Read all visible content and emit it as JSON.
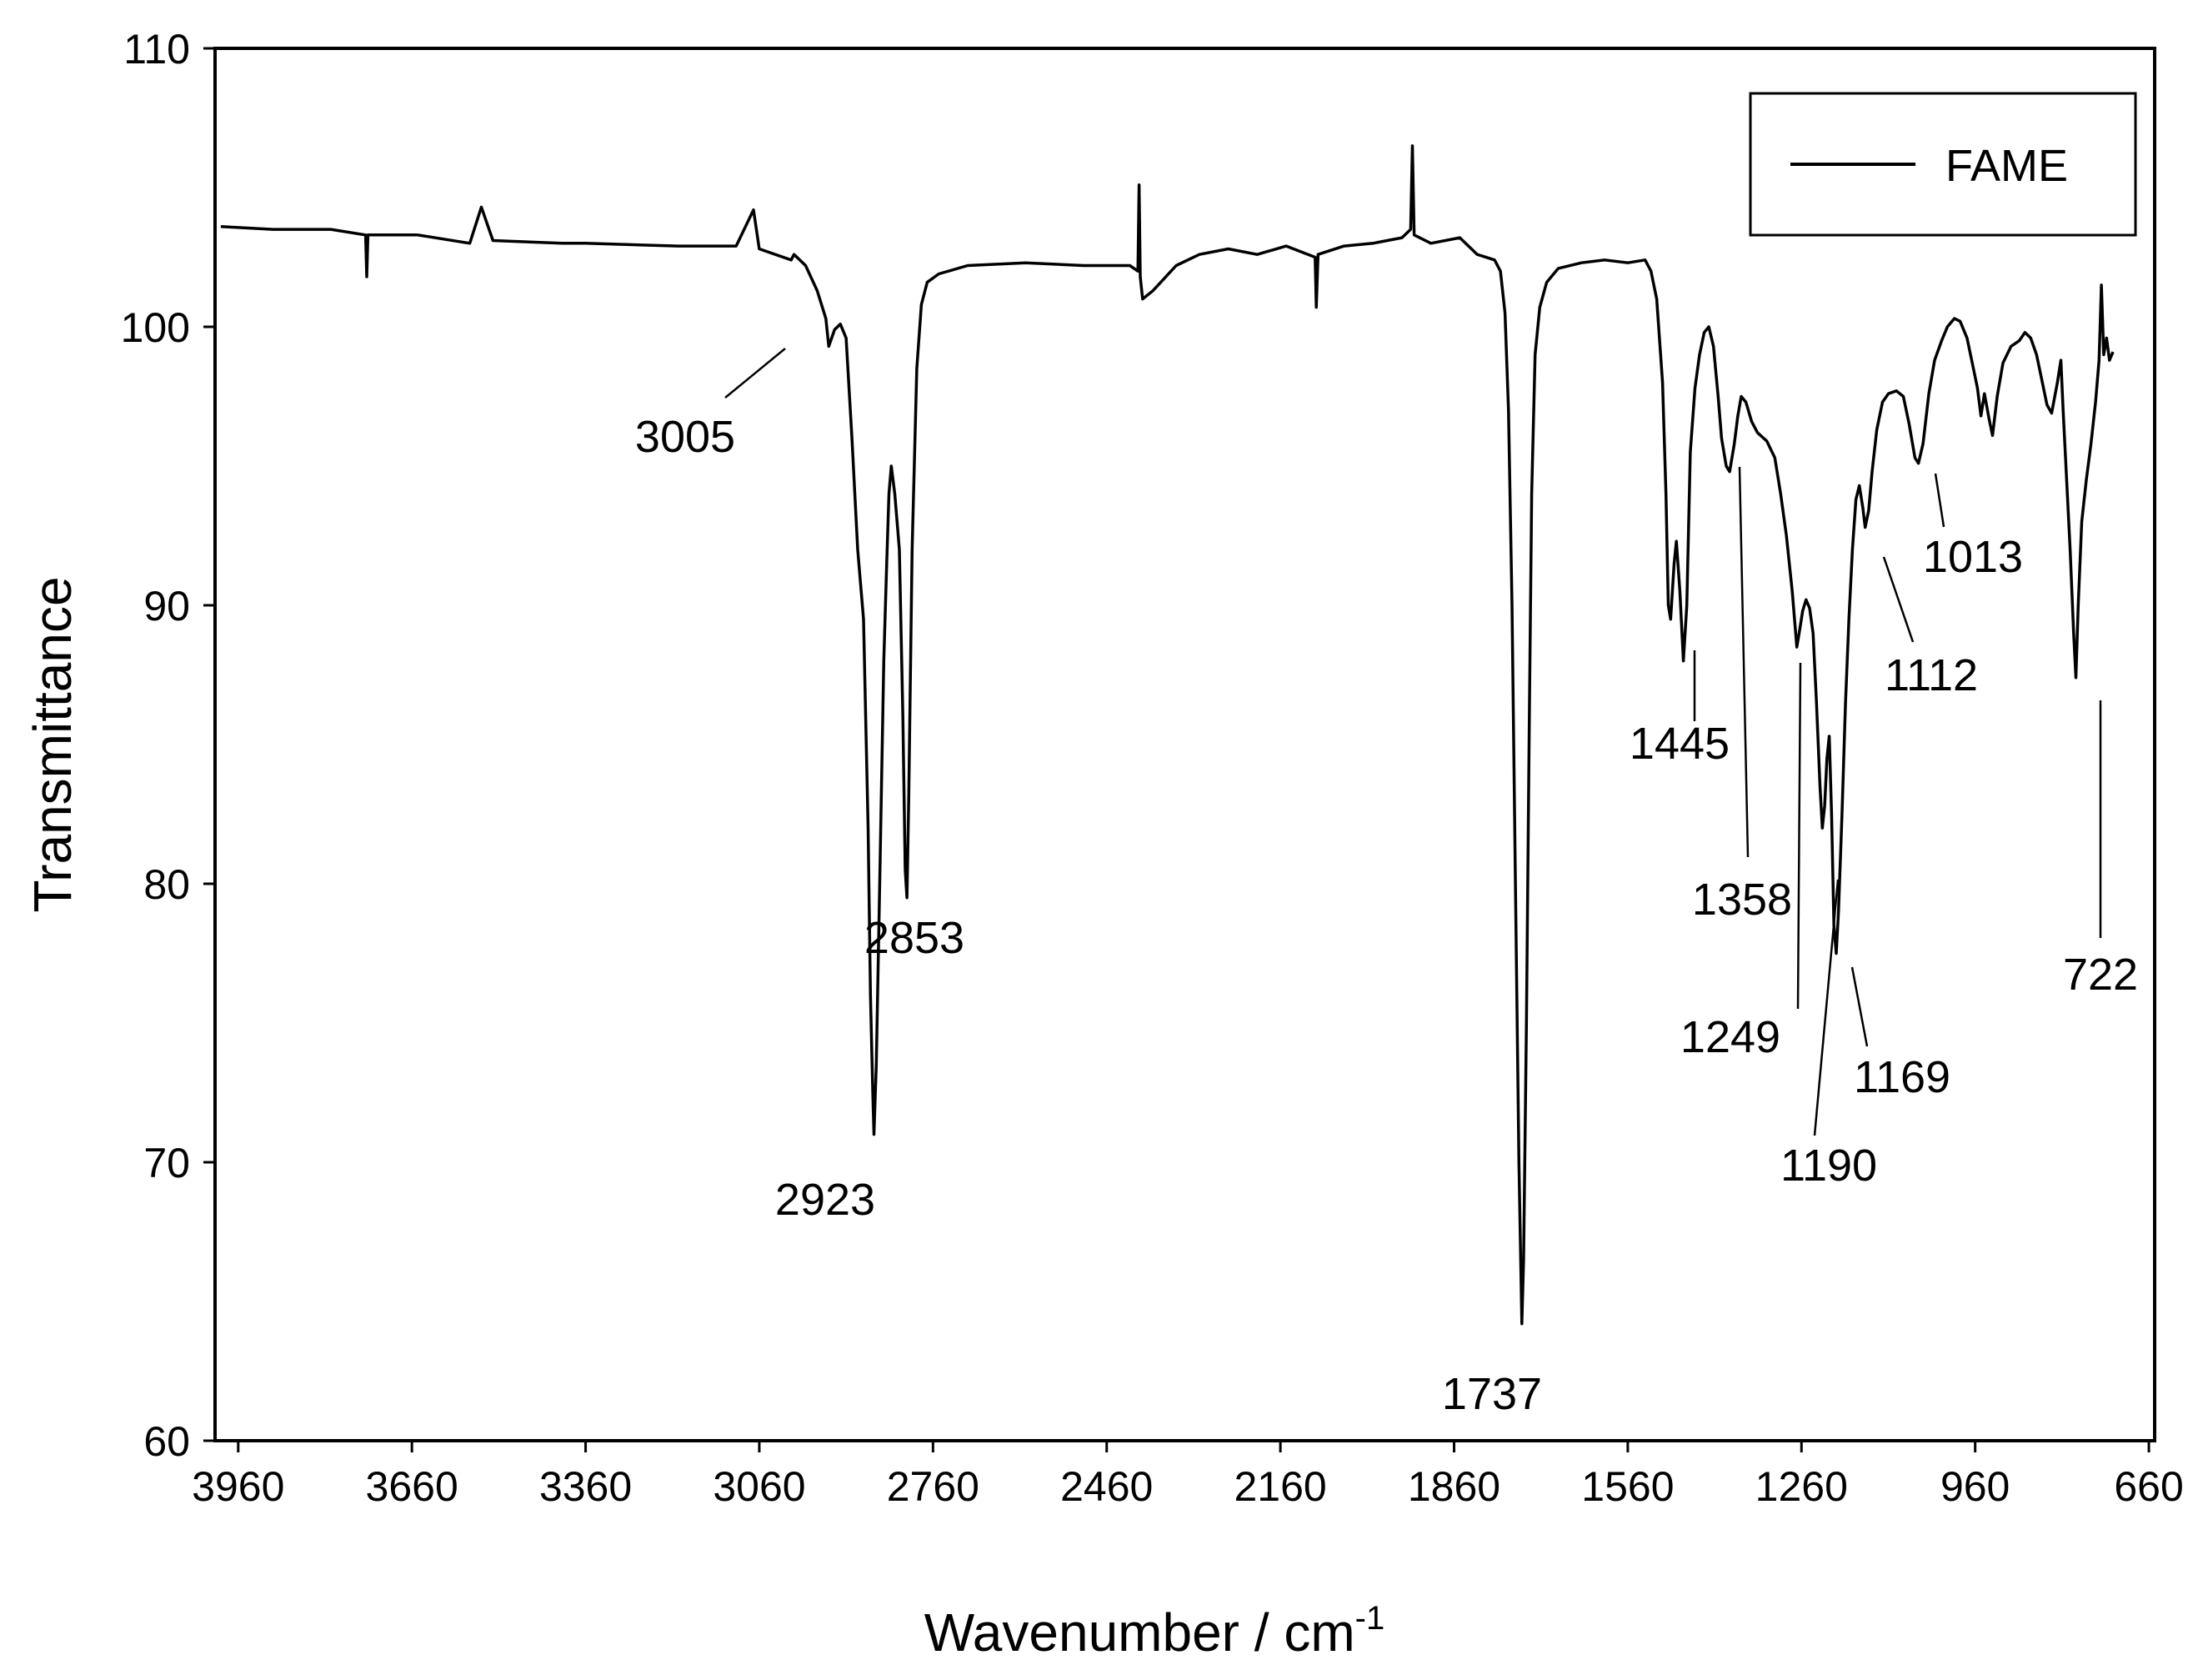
{
  "chart_data": {
    "type": "line",
    "title": "",
    "xlabel": "Wavenumber / cm",
    "xlabel_superscript": "-1",
    "ylabel": "Transmittance",
    "xlim": [
      4000,
      650
    ],
    "ylim": [
      60,
      110
    ],
    "x_reversed": true,
    "grid": false,
    "legend_position": "top-right",
    "x_ticks": [
      3960,
      3660,
      3360,
      3060,
      2760,
      2460,
      2160,
      1860,
      1560,
      1260,
      960,
      660
    ],
    "y_ticks": [
      60,
      70,
      80,
      90,
      100,
      110
    ],
    "series": [
      {
        "name": "FAME",
        "color": "#000000",
        "points": [
          [
            3990,
            103.6
          ],
          [
            3900,
            103.5
          ],
          [
            3800,
            103.5
          ],
          [
            3740,
            103.3
          ],
          [
            3738,
            101.8
          ],
          [
            3736,
            103.3
          ],
          [
            3650,
            103.3
          ],
          [
            3560,
            103.0
          ],
          [
            3540,
            104.3
          ],
          [
            3520,
            103.1
          ],
          [
            3400,
            103.0
          ],
          [
            3360,
            103.0
          ],
          [
            3200,
            102.9
          ],
          [
            3100,
            102.9
          ],
          [
            3070,
            104.2
          ],
          [
            3060,
            102.8
          ],
          [
            3000,
            102.6
          ],
          [
            2980,
            102.2
          ],
          [
            2960,
            101.3
          ],
          [
            2945,
            100.3
          ],
          [
            3005,
            102.4
          ],
          [
            2940,
            99.3
          ],
          [
            2930,
            99.9
          ],
          [
            2920,
            100.1
          ],
          [
            2910,
            99.6
          ],
          [
            2900,
            96.0
          ],
          [
            2890,
            92.0
          ],
          [
            2880,
            89.5
          ],
          [
            2872,
            82.0
          ],
          [
            2868,
            76.0
          ],
          [
            2864,
            72.5
          ],
          [
            2862,
            71.0
          ],
          [
            2858,
            73.5
          ],
          [
            2852,
            80.0
          ],
          [
            2845,
            88.0
          ],
          [
            2840,
            91.5
          ],
          [
            2836,
            94.0
          ],
          [
            2832,
            95.0
          ],
          [
            2826,
            94.0
          ],
          [
            2818,
            92.0
          ],
          [
            2812,
            86.0
          ],
          [
            2808,
            80.5
          ],
          [
            2805,
            79.5
          ],
          [
            2802,
            83.0
          ],
          [
            2796,
            92.0
          ],
          [
            2788,
            98.5
          ],
          [
            2780,
            100.8
          ],
          [
            2770,
            101.6
          ],
          [
            2750,
            101.9
          ],
          [
            2700,
            102.2
          ],
          [
            2600,
            102.3
          ],
          [
            2500,
            102.2
          ],
          [
            2420,
            102.2
          ],
          [
            2406,
            102.0
          ],
          [
            2404,
            105.1
          ],
          [
            2402,
            101.8
          ],
          [
            2398,
            101.0
          ],
          [
            2380,
            101.3
          ],
          [
            2340,
            102.2
          ],
          [
            2300,
            102.6
          ],
          [
            2250,
            102.8
          ],
          [
            2200,
            102.6
          ],
          [
            2150,
            102.9
          ],
          [
            2100,
            102.5
          ],
          [
            2098,
            100.7
          ],
          [
            2095,
            102.6
          ],
          [
            2050,
            102.9
          ],
          [
            2000,
            103.0
          ],
          [
            1950,
            103.2
          ],
          [
            1935,
            103.5
          ],
          [
            1932,
            106.5
          ],
          [
            1929,
            103.3
          ],
          [
            1900,
            103.0
          ],
          [
            1850,
            103.2
          ],
          [
            1820,
            102.6
          ],
          [
            1790,
            102.4
          ],
          [
            1780,
            102.0
          ],
          [
            1772,
            100.5
          ],
          [
            1766,
            97.0
          ],
          [
            1760,
            90.0
          ],
          [
            1754,
            80.0
          ],
          [
            1748,
            70.0
          ],
          [
            1743,
            64.2
          ],
          [
            1740,
            66.5
          ],
          [
            1735,
            75.0
          ],
          [
            1730,
            86.0
          ],
          [
            1726,
            94.0
          ],
          [
            1720,
            99.0
          ],
          [
            1712,
            100.7
          ],
          [
            1700,
            101.6
          ],
          [
            1680,
            102.1
          ],
          [
            1640,
            102.3
          ],
          [
            1600,
            102.4
          ],
          [
            1560,
            102.3
          ],
          [
            1530,
            102.4
          ],
          [
            1520,
            102.0
          ],
          [
            1510,
            101.0
          ],
          [
            1500,
            98.0
          ],
          [
            1494,
            94.0
          ],
          [
            1490,
            90.0
          ],
          [
            1486,
            89.5
          ],
          [
            1480,
            91.5
          ],
          [
            1476,
            92.3
          ],
          [
            1470,
            90.5
          ],
          [
            1464,
            88.0
          ],
          [
            1458,
            90.0
          ],
          [
            1452,
            95.5
          ],
          [
            1444,
            97.8
          ],
          [
            1436,
            99.0
          ],
          [
            1428,
            99.8
          ],
          [
            1420,
            100.0
          ],
          [
            1412,
            99.3
          ],
          [
            1404,
            97.5
          ],
          [
            1398,
            96.0
          ],
          [
            1390,
            95.0
          ],
          [
            1384,
            94.8
          ],
          [
            1376,
            95.8
          ],
          [
            1370,
            96.8
          ],
          [
            1364,
            97.5
          ],
          [
            1356,
            97.3
          ],
          [
            1346,
            96.6
          ],
          [
            1336,
            96.2
          ],
          [
            1320,
            95.9
          ],
          [
            1306,
            95.3
          ],
          [
            1296,
            94.0
          ],
          [
            1286,
            92.5
          ],
          [
            1276,
            90.5
          ],
          [
            1268,
            88.5
          ],
          [
            1264,
            89.0
          ],
          [
            1258,
            89.8
          ],
          [
            1252,
            90.2
          ],
          [
            1246,
            89.9
          ],
          [
            1240,
            89.0
          ],
          [
            1234,
            86.5
          ],
          [
            1228,
            83.5
          ],
          [
            1224,
            82.0
          ],
          [
            1220,
            82.8
          ],
          [
            1216,
            84.5
          ],
          [
            1212,
            85.3
          ],
          [
            1208,
            82.5
          ],
          [
            1204,
            78.5
          ],
          [
            1200,
            77.5
          ],
          [
            1196,
            79.0
          ],
          [
            1190,
            82.5
          ],
          [
            1184,
            86.5
          ],
          [
            1178,
            89.5
          ],
          [
            1172,
            92.0
          ],
          [
            1166,
            93.8
          ],
          [
            1160,
            94.3
          ],
          [
            1154,
            93.5
          ],
          [
            1150,
            92.8
          ],
          [
            1144,
            93.4
          ],
          [
            1138,
            94.8
          ],
          [
            1130,
            96.3
          ],
          [
            1120,
            97.3
          ],
          [
            1110,
            97.6
          ],
          [
            1096,
            97.7
          ],
          [
            1084,
            97.5
          ],
          [
            1074,
            96.5
          ],
          [
            1064,
            95.3
          ],
          [
            1058,
            95.1
          ],
          [
            1050,
            95.8
          ],
          [
            1040,
            97.6
          ],
          [
            1030,
            98.8
          ],
          [
            1018,
            99.5
          ],
          [
            1008,
            100.0
          ],
          [
            996,
            100.3
          ],
          [
            986,
            100.2
          ],
          [
            974,
            99.6
          ],
          [
            964,
            98.6
          ],
          [
            956,
            97.8
          ],
          [
            950,
            96.8
          ],
          [
            944,
            97.6
          ],
          [
            936,
            96.7
          ],
          [
            930,
            96.1
          ],
          [
            922,
            97.5
          ],
          [
            912,
            98.7
          ],
          [
            898,
            99.3
          ],
          [
            884,
            99.5
          ],
          [
            874,
            99.8
          ],
          [
            864,
            99.6
          ],
          [
            854,
            99.0
          ],
          [
            846,
            98.2
          ],
          [
            836,
            97.2
          ],
          [
            828,
            96.9
          ],
          [
            818,
            98.0
          ],
          [
            812,
            98.8
          ],
          [
            808,
            97.0
          ],
          [
            802,
            94.5
          ],
          [
            796,
            92.0
          ],
          [
            790,
            89.0
          ],
          [
            786,
            87.4
          ],
          [
            782,
            90.0
          ],
          [
            776,
            93.0
          ],
          [
            768,
            94.5
          ],
          [
            760,
            95.8
          ],
          [
            752,
            97.3
          ],
          [
            746,
            98.8
          ],
          [
            742,
            101.5
          ],
          [
            738,
            99.0
          ],
          [
            733,
            99.6
          ],
          [
            728,
            98.8
          ],
          [
            722,
            99.1
          ]
        ]
      }
    ],
    "annotations": [
      {
        "label": "3005",
        "peak_x": 3005
      },
      {
        "label": "2923",
        "peak_x": 2923
      },
      {
        "label": "2853",
        "peak_x": 2853
      },
      {
        "label": "1737",
        "peak_x": 1737
      },
      {
        "label": "1445",
        "peak_x": 1445
      },
      {
        "label": "1358",
        "peak_x": 1358
      },
      {
        "label": "1249",
        "peak_x": 1249
      },
      {
        "label": "1190",
        "peak_x": 1190
      },
      {
        "label": "1169",
        "peak_x": 1169
      },
      {
        "label": "1112",
        "peak_x": 1112
      },
      {
        "label": "1013",
        "peak_x": 1013
      },
      {
        "label": "722",
        "peak_x": 722
      }
    ]
  }
}
